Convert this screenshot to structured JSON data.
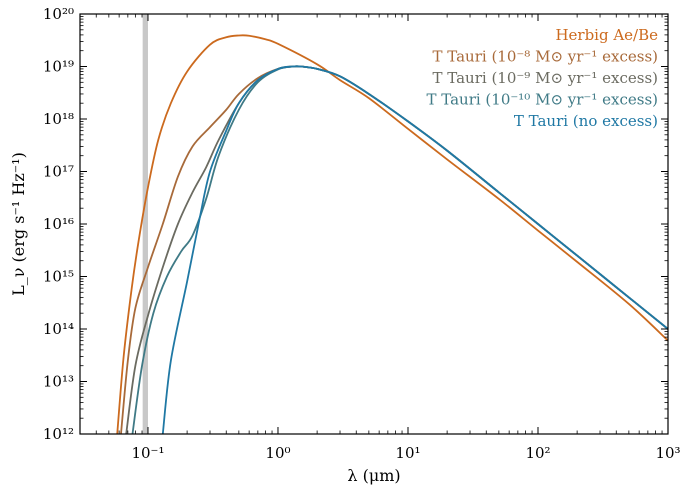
{
  "chart_data": {
    "type": "line",
    "title": "",
    "xlabel": "λ (μm)",
    "ylabel": "L_ν (erg s⁻¹ Hz⁻¹)",
    "x_scale": "log",
    "y_scale": "log",
    "xlim": [
      0.03,
      1000
    ],
    "ylim": [
      1000000000000.0,
      1e+20
    ],
    "x_ticks": [
      {
        "value": 0.1,
        "label": "10⁻¹"
      },
      {
        "value": 1,
        "label": "10⁰"
      },
      {
        "value": 10,
        "label": "10¹"
      },
      {
        "value": 100,
        "label": "10²"
      },
      {
        "value": 1000,
        "label": "10³"
      }
    ],
    "y_ticks": [
      {
        "value": 1000000000000.0,
        "label": "10¹²"
      },
      {
        "value": 10000000000000.0,
        "label": "10¹³"
      },
      {
        "value": 100000000000000.0,
        "label": "10¹⁴"
      },
      {
        "value": 1000000000000000.0,
        "label": "10¹⁵"
      },
      {
        "value": 1e+16,
        "label": "10¹⁶"
      },
      {
        "value": 1e+17,
        "label": "10¹⁷"
      },
      {
        "value": 1e+18,
        "label": "10¹⁸"
      },
      {
        "value": 1e+19,
        "label": "10¹⁹"
      },
      {
        "value": 1e+20,
        "label": "10²⁰"
      }
    ],
    "grid": false,
    "legend_position": "top-right",
    "shaded_band": {
      "x": [
        0.091,
        0.1
      ],
      "color": "#c8c8c8"
    },
    "series": [
      {
        "name": "Herbig Ae/Be",
        "color": "#cc6a1e",
        "points": [
          [
            0.058,
            1000000000000.0
          ],
          [
            0.065,
            30000000000000.0
          ],
          [
            0.075,
            600000000000000.0
          ],
          [
            0.085,
            5000000000000000.0
          ],
          [
            0.1,
            5e+16
          ],
          [
            0.12,
            4e+17
          ],
          [
            0.15,
            2e+18
          ],
          [
            0.2,
            8e+18
          ],
          [
            0.3,
            2.6e+19
          ],
          [
            0.4,
            3.6e+19
          ],
          [
            0.5,
            3.9e+19
          ],
          [
            0.6,
            3.85e+19
          ],
          [
            0.8,
            3.3e+19
          ],
          [
            1,
            2.7e+19
          ],
          [
            2,
            1.1e+19
          ],
          [
            3,
            5.5e+18
          ],
          [
            5,
            2.5e+18
          ],
          [
            10,
            6.5e+17
          ],
          [
            20,
            1.7e+17
          ],
          [
            50,
            3e+16
          ],
          [
            100,
            7500000000000000.0
          ],
          [
            200,
            1900000000000000.0
          ],
          [
            500,
            300000000000000.0
          ],
          [
            1000,
            60000000000000.0
          ]
        ]
      },
      {
        "name": "T Tauri (10⁻⁸ M⊙ yr⁻¹ excess)",
        "color": "#a86a3a",
        "points": [
          [
            0.062,
            1000000000000.0
          ],
          [
            0.07,
            25000000000000.0
          ],
          [
            0.08,
            250000000000000.0
          ],
          [
            0.1,
            1500000000000000.0
          ],
          [
            0.13,
            1e+16
          ],
          [
            0.17,
            8e+16
          ],
          [
            0.22,
            3e+17
          ],
          [
            0.3,
            7e+17
          ],
          [
            0.4,
            1.5e+18
          ],
          [
            0.5,
            3e+18
          ],
          [
            0.7,
            6e+18
          ],
          [
            1,
            9e+18
          ],
          [
            1.3,
            1e+19
          ],
          [
            1.5,
            1e+19
          ],
          [
            2,
            9e+18
          ],
          [
            3,
            6.5e+18
          ],
          [
            5,
            3e+18
          ],
          [
            10,
            9e+17
          ],
          [
            20,
            2.5e+17
          ],
          [
            50,
            4e+16
          ],
          [
            100,
            1e+16
          ],
          [
            200,
            2500000000000000.0
          ],
          [
            500,
            400000000000000.0
          ],
          [
            1000,
            100000000000000.0
          ]
        ]
      },
      {
        "name": "T Tauri (10⁻⁹ M⊙ yr⁻¹ excess)",
        "color": "#6b6b61",
        "points": [
          [
            0.068,
            1000000000000.0
          ],
          [
            0.08,
            20000000000000.0
          ],
          [
            0.1,
            180000000000000.0
          ],
          [
            0.13,
            1500000000000000.0
          ],
          [
            0.17,
            1e+16
          ],
          [
            0.22,
            4e+16
          ],
          [
            0.28,
            1.2e+17
          ],
          [
            0.35,
            4e+17
          ],
          [
            0.5,
            2e+18
          ],
          [
            0.7,
            5.5e+18
          ],
          [
            1,
            9e+18
          ],
          [
            1.3,
            1e+19
          ],
          [
            1.5,
            1e+19
          ],
          [
            2,
            9e+18
          ],
          [
            3,
            6.5e+18
          ],
          [
            5,
            3e+18
          ],
          [
            10,
            9e+17
          ],
          [
            20,
            2.5e+17
          ],
          [
            50,
            4e+16
          ],
          [
            100,
            1e+16
          ],
          [
            200,
            2500000000000000.0
          ],
          [
            500,
            400000000000000.0
          ],
          [
            1000,
            100000000000000.0
          ]
        ]
      },
      {
        "name": "T Tauri (10⁻¹⁰ M⊙ yr⁻¹ excess)",
        "color": "#3f7a86",
        "points": [
          [
            0.076,
            1000000000000.0
          ],
          [
            0.09,
            20000000000000.0
          ],
          [
            0.11,
            200000000000000.0
          ],
          [
            0.14,
            1000000000000000.0
          ],
          [
            0.18,
            3000000000000000.0
          ],
          [
            0.22,
            6000000000000000.0
          ],
          [
            0.28,
            3e+16
          ],
          [
            0.35,
            2e+17
          ],
          [
            0.5,
            1.5e+18
          ],
          [
            0.7,
            5e+18
          ],
          [
            1,
            8.8e+18
          ],
          [
            1.3,
            1e+19
          ],
          [
            1.5,
            1e+19
          ],
          [
            2,
            9e+18
          ],
          [
            3,
            6.5e+18
          ],
          [
            5,
            3e+18
          ],
          [
            10,
            9e+17
          ],
          [
            20,
            2.5e+17
          ],
          [
            50,
            4e+16
          ],
          [
            100,
            1e+16
          ],
          [
            200,
            2500000000000000.0
          ],
          [
            500,
            400000000000000.0
          ],
          [
            1000,
            100000000000000.0
          ]
        ]
      },
      {
        "name": "T Tauri (no excess)",
        "color": "#1f78a4",
        "points": [
          [
            0.13,
            1000000000000.0
          ],
          [
            0.15,
            25000000000000.0
          ],
          [
            0.2,
            800000000000000.0
          ],
          [
            0.25,
            1.3e+16
          ],
          [
            0.3,
            1e+17
          ],
          [
            0.4,
            6e+17
          ],
          [
            0.5,
            2e+18
          ],
          [
            0.7,
            5.5e+18
          ],
          [
            1,
            9e+18
          ],
          [
            1.3,
            1e+19
          ],
          [
            1.5,
            1e+19
          ],
          [
            2,
            9e+18
          ],
          [
            3,
            6.5e+18
          ],
          [
            5,
            3e+18
          ],
          [
            10,
            9e+17
          ],
          [
            20,
            2.5e+17
          ],
          [
            50,
            4e+16
          ],
          [
            100,
            1e+16
          ],
          [
            200,
            2500000000000000.0
          ],
          [
            500,
            400000000000000.0
          ],
          [
            1000,
            100000000000000.0
          ]
        ]
      }
    ]
  }
}
